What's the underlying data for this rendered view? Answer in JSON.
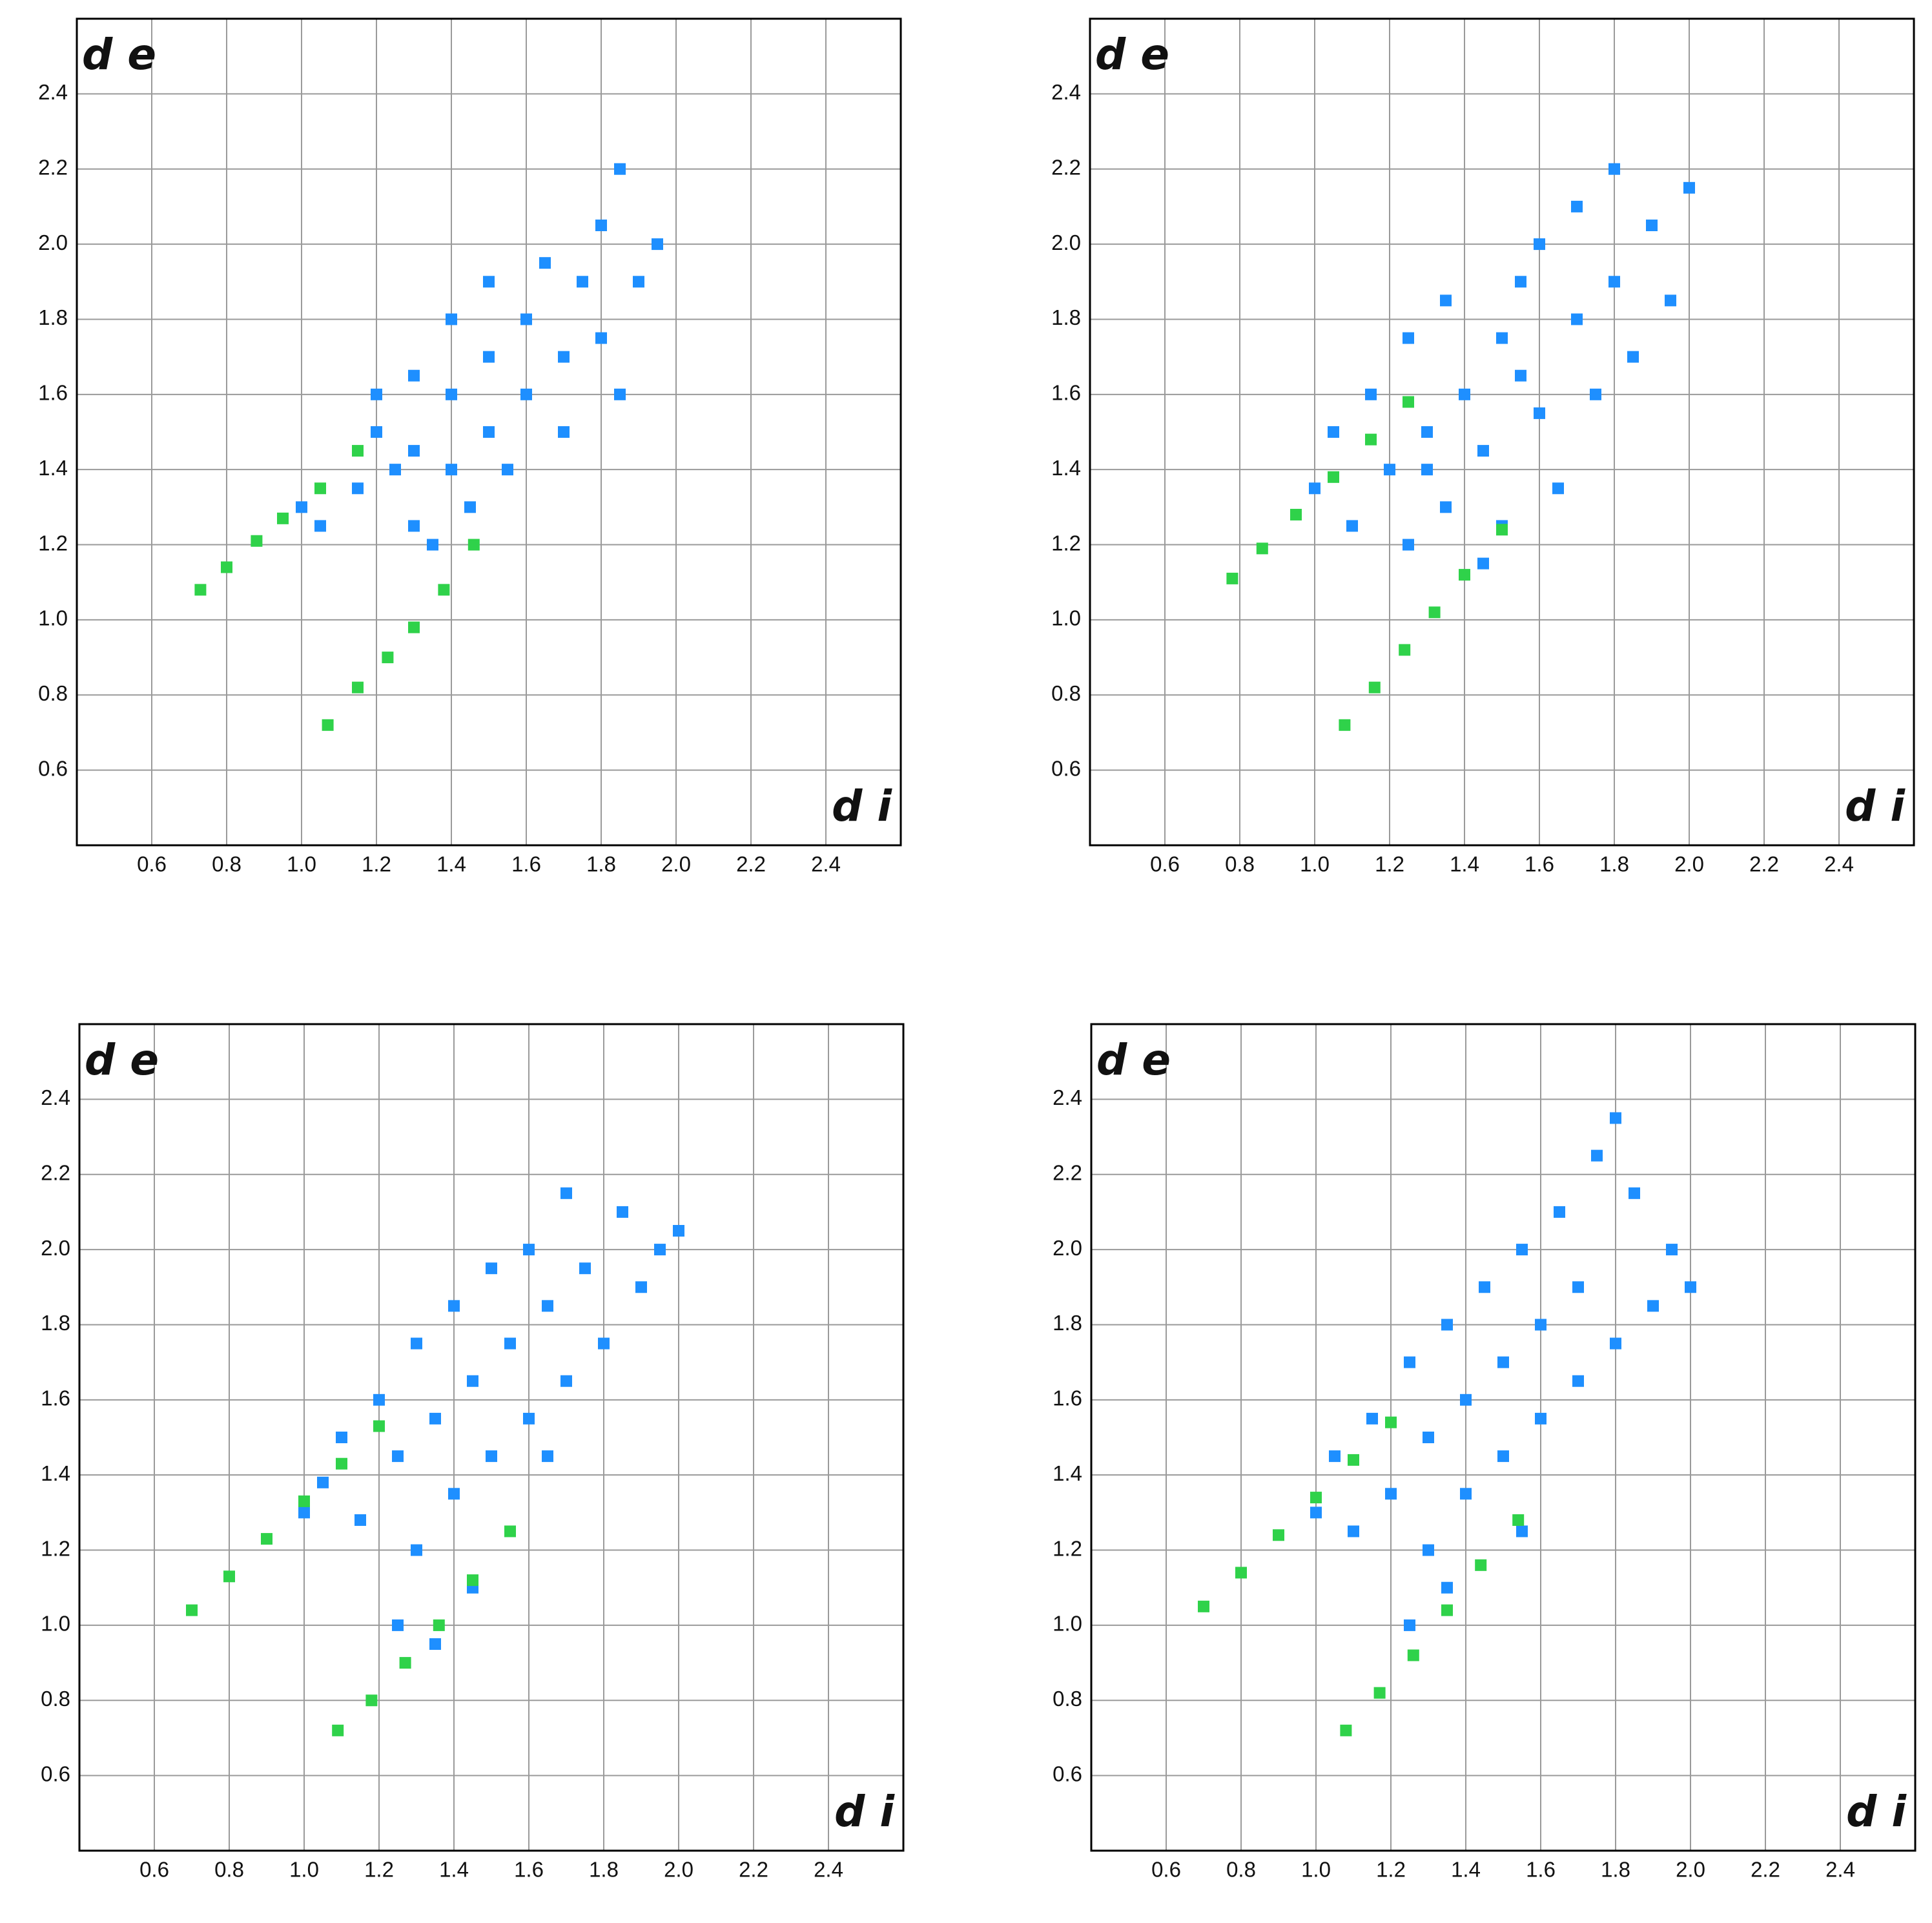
{
  "chart_data": [
    {
      "type": "scatter",
      "x_label": "d i",
      "y_label": "d e",
      "xlim": [
        0.4,
        2.6
      ],
      "ylim": [
        0.4,
        2.6
      ],
      "xticks": [
        0.6,
        0.8,
        {
          "value": 1,
          "label": "1.0"
        },
        1.2,
        1.4,
        1.6,
        1.8,
        {
          "value": 2,
          "label": "2.0"
        },
        2.2,
        2.4
      ],
      "yticks": [
        0.6,
        0.8,
        {
          "value": 1,
          "label": "1.0"
        },
        1.2,
        1.4,
        1.6,
        1.8,
        {
          "value": 2,
          "label": "2.0"
        },
        2.2,
        2.4
      ],
      "grid": true,
      "series": [
        {
          "color": "#1e8fff",
          "x": [
            1.0,
            1.05,
            1.15,
            1.2,
            1.2,
            1.3,
            1.3,
            1.3,
            1.35,
            1.4,
            1.4,
            1.4,
            1.45,
            1.5,
            1.5,
            1.5,
            1.55,
            1.6,
            1.6,
            1.65,
            1.7,
            1.7,
            1.75,
            1.8,
            1.8,
            1.85,
            1.9,
            1.95,
            1.85,
            1.25
          ],
          "values": [
            1.3,
            1.25,
            1.35,
            1.5,
            1.6,
            1.45,
            1.65,
            1.25,
            1.2,
            1.4,
            1.6,
            1.8,
            1.3,
            1.5,
            1.7,
            1.9,
            1.4,
            1.6,
            1.8,
            1.95,
            1.5,
            1.7,
            1.9,
            1.75,
            2.05,
            2.2,
            1.9,
            2.0,
            1.6,
            1.4
          ]
        },
        {
          "color": "#2fd24a",
          "x": [
            0.73,
            0.8,
            0.88,
            0.95,
            1.05,
            1.15,
            1.07,
            1.15,
            1.23,
            1.3,
            1.38,
            1.46
          ],
          "values": [
            1.08,
            1.14,
            1.21,
            1.27,
            1.35,
            1.45,
            0.72,
            0.82,
            0.9,
            0.98,
            1.08,
            1.2
          ]
        }
      ]
    },
    {
      "type": "scatter",
      "x_label": "d i",
      "y_label": "d e",
      "xlim": [
        0.4,
        2.6
      ],
      "ylim": [
        0.4,
        2.6
      ],
      "xticks": [
        0.6,
        0.8,
        {
          "value": 1,
          "label": "1.0"
        },
        1.2,
        1.4,
        1.6,
        1.8,
        {
          "value": 2,
          "label": "2.0"
        },
        2.2,
        2.4
      ],
      "yticks": [
        0.6,
        0.8,
        {
          "value": 1,
          "label": "1.0"
        },
        1.2,
        1.4,
        1.6,
        1.8,
        {
          "value": 2,
          "label": "2.0"
        },
        2.2,
        2.4
      ],
      "grid": true,
      "series": [
        {
          "color": "#1e8fff",
          "x": [
            1.0,
            1.05,
            1.1,
            1.15,
            1.2,
            1.25,
            1.25,
            1.3,
            1.35,
            1.35,
            1.4,
            1.45,
            1.5,
            1.5,
            1.55,
            1.6,
            1.6,
            1.65,
            1.7,
            1.7,
            1.75,
            1.8,
            1.8,
            1.85,
            1.9,
            1.95,
            2.0,
            1.45,
            1.3,
            1.55
          ],
          "values": [
            1.35,
            1.5,
            1.25,
            1.6,
            1.4,
            1.75,
            1.2,
            1.5,
            1.85,
            1.3,
            1.6,
            1.45,
            1.75,
            1.25,
            1.9,
            1.55,
            2.0,
            1.35,
            1.8,
            2.1,
            1.6,
            2.2,
            1.9,
            1.7,
            2.05,
            1.85,
            2.15,
            1.15,
            1.4,
            1.65
          ]
        },
        {
          "color": "#2fd24a",
          "x": [
            0.78,
            0.86,
            0.95,
            1.05,
            1.15,
            1.25,
            1.08,
            1.16,
            1.24,
            1.32,
            1.4,
            1.5
          ],
          "values": [
            1.11,
            1.19,
            1.28,
            1.38,
            1.48,
            1.58,
            0.72,
            0.82,
            0.92,
            1.02,
            1.12,
            1.24
          ]
        }
      ]
    },
    {
      "type": "scatter",
      "x_label": "d i",
      "y_label": "d e",
      "xlim": [
        0.4,
        2.6
      ],
      "ylim": [
        0.4,
        2.6
      ],
      "xticks": [
        0.6,
        0.8,
        {
          "value": 1,
          "label": "1.0"
        },
        1.2,
        1.4,
        1.6,
        1.8,
        {
          "value": 2,
          "label": "2.0"
        },
        2.2,
        2.4
      ],
      "yticks": [
        0.6,
        0.8,
        {
          "value": 1,
          "label": "1.0"
        },
        1.2,
        1.4,
        1.6,
        1.8,
        {
          "value": 2,
          "label": "2.0"
        },
        2.2,
        2.4
      ],
      "grid": true,
      "series": [
        {
          "color": "#1e8fff",
          "x": [
            1.0,
            1.05,
            1.1,
            1.15,
            1.2,
            1.25,
            1.25,
            1.3,
            1.3,
            1.35,
            1.35,
            1.4,
            1.4,
            1.45,
            1.5,
            1.5,
            1.55,
            1.6,
            1.6,
            1.65,
            1.7,
            1.7,
            1.75,
            1.8,
            1.85,
            1.9,
            1.95,
            2.0,
            1.45,
            1.65
          ],
          "values": [
            1.3,
            1.38,
            1.5,
            1.28,
            1.6,
            1.45,
            1.0,
            1.75,
            1.2,
            1.55,
            0.95,
            1.85,
            1.35,
            1.65,
            1.95,
            1.45,
            1.75,
            2.0,
            1.55,
            1.85,
            2.15,
            1.65,
            1.95,
            1.75,
            2.1,
            1.9,
            2.0,
            2.05,
            1.1,
            1.45
          ]
        },
        {
          "color": "#2fd24a",
          "x": [
            0.7,
            0.8,
            0.9,
            1.0,
            1.1,
            1.2,
            1.09,
            1.18,
            1.27,
            1.36,
            1.45,
            1.55
          ],
          "values": [
            1.04,
            1.13,
            1.23,
            1.33,
            1.43,
            1.53,
            0.72,
            0.8,
            0.9,
            1.0,
            1.12,
            1.25
          ]
        }
      ]
    },
    {
      "type": "scatter",
      "x_label": "d i",
      "y_label": "d e",
      "xlim": [
        0.4,
        2.6
      ],
      "ylim": [
        0.4,
        2.6
      ],
      "xticks": [
        0.6,
        0.8,
        {
          "value": 1,
          "label": "1.0"
        },
        1.2,
        1.4,
        1.6,
        1.8,
        {
          "value": 2,
          "label": "2.0"
        },
        2.2,
        2.4
      ],
      "yticks": [
        0.6,
        0.8,
        {
          "value": 1,
          "label": "1.0"
        },
        1.2,
        1.4,
        1.6,
        1.8,
        {
          "value": 2,
          "label": "2.0"
        },
        2.2,
        2.4
      ],
      "grid": true,
      "series": [
        {
          "color": "#1e8fff",
          "x": [
            1.0,
            1.05,
            1.1,
            1.15,
            1.2,
            1.25,
            1.25,
            1.3,
            1.3,
            1.35,
            1.4,
            1.4,
            1.45,
            1.5,
            1.5,
            1.55,
            1.6,
            1.6,
            1.65,
            1.7,
            1.7,
            1.75,
            1.8,
            1.8,
            1.85,
            1.9,
            1.95,
            2.0,
            1.35,
            1.55
          ],
          "values": [
            1.3,
            1.45,
            1.25,
            1.55,
            1.35,
            1.7,
            1.0,
            1.5,
            1.2,
            1.8,
            1.6,
            1.35,
            1.9,
            1.7,
            1.45,
            2.0,
            1.8,
            1.55,
            2.1,
            1.9,
            1.65,
            2.25,
            2.35,
            1.75,
            2.15,
            1.85,
            2.0,
            1.9,
            1.1,
            1.25
          ]
        },
        {
          "color": "#2fd24a",
          "x": [
            0.7,
            0.8,
            0.9,
            1.0,
            1.1,
            1.2,
            1.08,
            1.17,
            1.26,
            1.35,
            1.44,
            1.54
          ],
          "values": [
            1.05,
            1.14,
            1.24,
            1.34,
            1.44,
            1.54,
            0.72,
            0.82,
            0.92,
            1.04,
            1.16,
            1.28
          ]
        }
      ]
    }
  ]
}
